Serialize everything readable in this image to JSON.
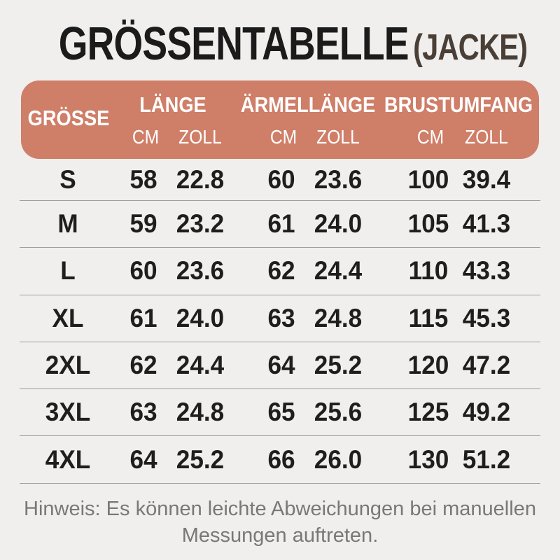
{
  "title": {
    "main": "GRÖSSENTABELLE",
    "suffix": "(JACKE)"
  },
  "table": {
    "size_header": "GRÖSSE",
    "groups": [
      {
        "label": "LÄNGE"
      },
      {
        "label": "ÄRMELLÄNGE"
      },
      {
        "label": "BRUSTUMFANG"
      }
    ],
    "units": [
      "CM",
      "ZOLL",
      "CM",
      "ZOLL",
      "CM",
      "ZOLL"
    ],
    "rows": [
      {
        "size": "S",
        "values": [
          "58",
          "22.8",
          "60",
          "23.6",
          "100",
          "39.4"
        ]
      },
      {
        "size": "M",
        "values": [
          "59",
          "23.2",
          "61",
          "24.0",
          "105",
          "41.3"
        ]
      },
      {
        "size": "L",
        "values": [
          "60",
          "23.6",
          "62",
          "24.4",
          "110",
          "43.3"
        ]
      },
      {
        "size": "XL",
        "values": [
          "61",
          "24.0",
          "63",
          "24.8",
          "115",
          "45.3"
        ]
      },
      {
        "size": "2XL",
        "values": [
          "62",
          "24.4",
          "64",
          "25.2",
          "120",
          "47.2"
        ]
      },
      {
        "size": "3XL",
        "values": [
          "63",
          "24.8",
          "65",
          "25.6",
          "125",
          "49.2"
        ]
      },
      {
        "size": "4XL",
        "values": [
          "64",
          "25.2",
          "66",
          "26.0",
          "130",
          "51.2"
        ]
      }
    ]
  },
  "note": "Hinweis: Es können leichte Abweichungen bei manuellen Messungen auftreten.",
  "colors": {
    "background": "#f0efed",
    "header_bg": "#cf7e68",
    "header_text": "#ffffff",
    "title_text": "#1b1b1b",
    "title_suffix_text": "#4a3f37",
    "row_text": "#1e1e1e",
    "divider": "#9e9e9e",
    "note_text": "#787878"
  },
  "chart_data": {
    "type": "table",
    "title": "GRÖSSENTABELLE (JACKE)",
    "columns": [
      "GRÖSSE",
      "LÄNGE CM",
      "LÄNGE ZOLL",
      "ÄRMELLÄNGE CM",
      "ÄRMELLÄNGE ZOLL",
      "BRUSTUMFANG CM",
      "BRUSTUMFANG ZOLL"
    ],
    "rows": [
      [
        "S",
        "58",
        "22.8",
        "60",
        "23.6",
        "100",
        "39.4"
      ],
      [
        "M",
        "59",
        "23.2",
        "61",
        "24.0",
        "105",
        "41.3"
      ],
      [
        "L",
        "60",
        "23.6",
        "62",
        "24.4",
        "110",
        "43.3"
      ],
      [
        "XL",
        "61",
        "24.0",
        "63",
        "24.8",
        "115",
        "45.3"
      ],
      [
        "2XL",
        "62",
        "24.4",
        "64",
        "25.2",
        "120",
        "47.2"
      ],
      [
        "3XL",
        "63",
        "24.8",
        "65",
        "25.6",
        "125",
        "49.2"
      ],
      [
        "4XL",
        "64",
        "25.2",
        "66",
        "26.0",
        "130",
        "51.2"
      ]
    ],
    "note": "Hinweis: Es können leichte Abweichungen bei manuellen Messungen auftreten."
  }
}
